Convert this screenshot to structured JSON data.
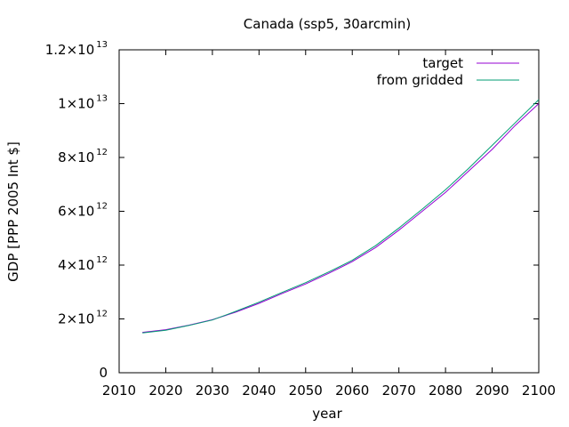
{
  "chart_data": {
    "type": "line",
    "title": "Canada (ssp5, 30arcmin)",
    "xlabel": "year",
    "ylabel": "GDP [PPP 2005 Int $]",
    "xlim": [
      2010,
      2100
    ],
    "ylim": [
      0,
      12000000000000
    ],
    "grid": false,
    "legend_position": "top-right",
    "x_ticks": [
      {
        "value": 2010,
        "label": "2010"
      },
      {
        "value": 2020,
        "label": "2020"
      },
      {
        "value": 2030,
        "label": "2030"
      },
      {
        "value": 2040,
        "label": "2040"
      },
      {
        "value": 2050,
        "label": "2050"
      },
      {
        "value": 2060,
        "label": "2060"
      },
      {
        "value": 2070,
        "label": "2070"
      },
      {
        "value": 2080,
        "label": "2080"
      },
      {
        "value": 2090,
        "label": "2090"
      },
      {
        "value": 2100,
        "label": "2100"
      }
    ],
    "y_ticks": [
      {
        "value": 0,
        "mantissa": "0",
        "exponent": ""
      },
      {
        "value": 2000000000000,
        "mantissa": "2×10",
        "exponent": "12"
      },
      {
        "value": 4000000000000,
        "mantissa": "4×10",
        "exponent": "12"
      },
      {
        "value": 6000000000000,
        "mantissa": "6×10",
        "exponent": "12"
      },
      {
        "value": 8000000000000,
        "mantissa": "8×10",
        "exponent": "12"
      },
      {
        "value": 10000000000000,
        "mantissa": "1×10",
        "exponent": "13"
      },
      {
        "value": 12000000000000,
        "mantissa": "1.2×10",
        "exponent": "13"
      }
    ],
    "x": [
      2015,
      2020,
      2025,
      2030,
      2035,
      2040,
      2045,
      2050,
      2055,
      2060,
      2065,
      2070,
      2075,
      2080,
      2085,
      2090,
      2095,
      2100
    ],
    "series": [
      {
        "name": "target",
        "color": "#9400d3",
        "values": [
          1500000000000,
          1600000000000,
          1770000000000,
          1970000000000,
          2250000000000,
          2580000000000,
          2950000000000,
          3300000000000,
          3700000000000,
          4130000000000,
          4650000000000,
          5300000000000,
          6000000000000,
          6700000000000,
          7500000000000,
          8300000000000,
          9200000000000,
          10000000000000
        ]
      },
      {
        "name": "from gridded",
        "color": "#009e73",
        "values": [
          1480000000000,
          1580000000000,
          1760000000000,
          1960000000000,
          2280000000000,
          2620000000000,
          2990000000000,
          3350000000000,
          3750000000000,
          4180000000000,
          4720000000000,
          5380000000000,
          6080000000000,
          6800000000000,
          7600000000000,
          8450000000000,
          9300000000000,
          10150000000000
        ]
      }
    ]
  }
}
